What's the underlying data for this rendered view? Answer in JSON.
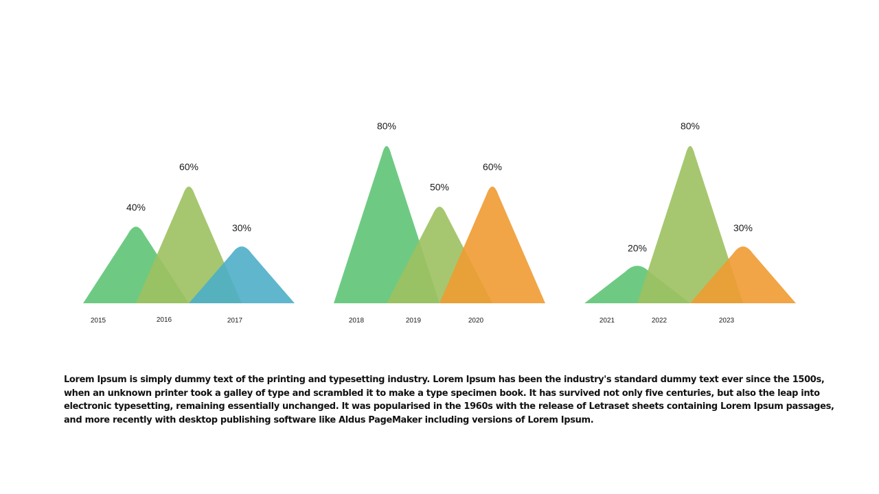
{
  "chart_data": [
    {
      "type": "area",
      "categories": [
        "2015",
        "2016",
        "2017"
      ],
      "values": [
        40,
        60,
        30
      ],
      "value_labels": [
        "40%",
        "60%",
        "30%"
      ],
      "colors": [
        "#5ec475",
        "#9cc15f",
        "#4eaec8"
      ],
      "ylim": [
        0,
        100
      ],
      "xlabel": "",
      "ylabel": "",
      "title": "",
      "grid": false
    },
    {
      "type": "area",
      "categories": [
        "2018",
        "2019",
        "2020"
      ],
      "values": [
        80,
        50,
        60
      ],
      "value_labels": [
        "80%",
        "50%",
        "60%"
      ],
      "colors": [
        "#5ec475",
        "#9cc15f",
        "#f09b32"
      ],
      "ylim": [
        0,
        100
      ],
      "xlabel": "",
      "ylabel": "",
      "title": "",
      "grid": false
    },
    {
      "type": "area",
      "categories": [
        "2021",
        "2022",
        "2023"
      ],
      "values": [
        20,
        80,
        30
      ],
      "value_labels": [
        "20%",
        "80%",
        "30%"
      ],
      "colors": [
        "#5ec475",
        "#9cc15f",
        "#f09b32"
      ],
      "ylim": [
        0,
        100
      ],
      "xlabel": "",
      "ylabel": "",
      "title": "",
      "grid": false
    }
  ],
  "caption": "Lorem Ipsum is simply dummy text of the printing and typesetting industry. Lorem Ipsum has been the industry's standard dummy text ever since the 1500s, when an unknown printer took a galley of type and scrambled it to make a type specimen book. It has survived not only five centuries, but also the leap into electronic typesetting, remaining essentially unchanged. It was popularised in the 1960s with the release of Letraset sheets containing Lorem Ipsum passages, and more recently with desktop publishing software like Aldus PageMaker including versions of Lorem Ipsum."
}
